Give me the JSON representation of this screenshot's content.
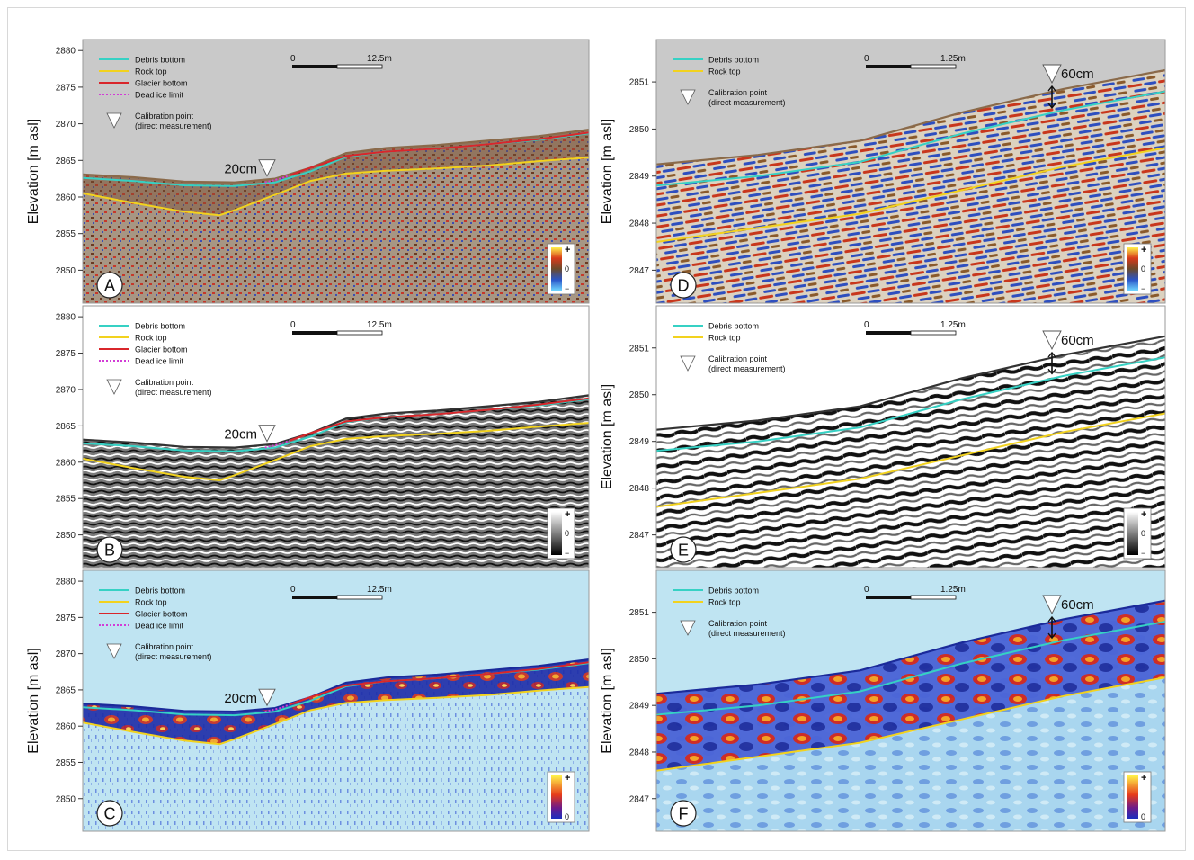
{
  "colors": {
    "debris": "#36d1c4",
    "rock": "#f2d21e",
    "glacier": "#d9262b",
    "deadice": "#d23cd6",
    "tickText": "#222222",
    "scaleBar": "#111111",
    "panelBgGray": "#c9c9c9",
    "panelBgWhite": "#ffffff",
    "panelBgBlue": "#bfe4f2"
  },
  "chart_data": [
    {
      "type": "line",
      "panel_label": "A",
      "ylabel": "Elevation [m asl]",
      "yticks": [
        "2880",
        "2875",
        "2870",
        "2865",
        "2860",
        "2855",
        "2850"
      ],
      "ylim": [
        2845.5,
        2881.5
      ],
      "xlim": [
        0,
        100
      ],
      "colormap": "brown-red-yellow",
      "colorbar_labels": [
        "+",
        "0",
        "−"
      ],
      "legend": [
        "Debris bottom",
        "Rock top",
        "Glacier bottom",
        "Dead ice limit"
      ],
      "calibration_label": "Calibration point\n(direct measurement)",
      "scale_bar": {
        "start": "0",
        "end": "12.5m"
      },
      "annotation": "20cm",
      "series": [
        {
          "name": "Debris bottom",
          "color_key": "debris",
          "x": [
            0,
            10,
            20,
            30,
            38,
            45,
            52,
            60,
            70,
            80,
            90,
            100
          ],
          "y": [
            2862.6,
            2862.2,
            2861.6,
            2861.5,
            2862.0,
            2863.5,
            2865.5,
            2866.2,
            2866.6,
            2867.2,
            2867.8,
            2868.7
          ]
        },
        {
          "name": "Rock top",
          "color_key": "rock",
          "x": [
            0,
            10,
            20,
            27,
            30,
            38,
            45,
            52,
            60,
            70,
            80,
            90,
            100
          ],
          "y": [
            2860.5,
            2859.2,
            2858.0,
            2857.5,
            2858.2,
            2860.3,
            2862.2,
            2863.2,
            2863.6,
            2863.9,
            2864.3,
            2864.9,
            2865.4
          ]
        },
        {
          "name": "Glacier bottom",
          "color_key": "glacier",
          "x": [
            41,
            45,
            52,
            60,
            70,
            80,
            90,
            100
          ],
          "y": [
            2863.0,
            2864.0,
            2865.6,
            2866.2,
            2866.6,
            2867.2,
            2867.9,
            2868.8
          ]
        },
        {
          "name": "Dead ice limit",
          "color_key": "deadice",
          "x": [
            36,
            39,
            41
          ],
          "y": [
            2862.0,
            2862.5,
            2863.0
          ]
        }
      ]
    },
    {
      "type": "line",
      "panel_label": "B",
      "ylabel": "",
      "yticks": [
        "2880",
        "2875",
        "2870",
        "2865",
        "2860",
        "2855",
        "2850"
      ],
      "ylim": [
        2845.5,
        2881.5
      ],
      "xlim": [
        0,
        100
      ],
      "colormap": "grayscale",
      "colorbar_labels": [
        "+",
        "0",
        "−"
      ],
      "legend": [
        "Debris bottom",
        "Rock top",
        "Glacier bottom",
        "Dead ice limit"
      ],
      "calibration_label": "Calibration point\n(direct measurement)",
      "scale_bar": {
        "start": "0",
        "end": "12.5m"
      },
      "annotation": "20cm",
      "series": [
        {
          "name": "Debris bottom",
          "color_key": "debris",
          "x": [
            0,
            10,
            20,
            30,
            38,
            45,
            52,
            60,
            70,
            80,
            90,
            100
          ],
          "y": [
            2862.6,
            2862.2,
            2861.6,
            2861.5,
            2862.0,
            2863.5,
            2865.5,
            2866.2,
            2866.6,
            2867.2,
            2867.8,
            2868.7
          ]
        },
        {
          "name": "Rock top",
          "color_key": "rock",
          "x": [
            0,
            10,
            20,
            27,
            30,
            38,
            45,
            52,
            60,
            70,
            80,
            90,
            100
          ],
          "y": [
            2860.5,
            2859.2,
            2858.0,
            2857.5,
            2858.2,
            2860.3,
            2862.2,
            2863.2,
            2863.6,
            2863.9,
            2864.3,
            2864.9,
            2865.4
          ]
        },
        {
          "name": "Glacier bottom",
          "color_key": "glacier",
          "x": [
            41,
            45,
            52,
            60,
            70,
            80,
            90,
            100
          ],
          "y": [
            2863.0,
            2864.0,
            2865.6,
            2866.2,
            2866.6,
            2867.2,
            2867.9,
            2868.8
          ]
        },
        {
          "name": "Dead ice limit",
          "color_key": "deadice",
          "x": [
            36,
            39,
            41
          ],
          "y": [
            2862.0,
            2862.5,
            2863.0
          ]
        }
      ]
    },
    {
      "type": "line",
      "panel_label": "C",
      "ylabel": "Elevation [m asl]",
      "yticks": [
        "2880",
        "2875",
        "2870",
        "2865",
        "2860",
        "2855",
        "2850"
      ],
      "ylim": [
        2845.5,
        2881.5
      ],
      "xlim": [
        0,
        100
      ],
      "colormap": "blue-red-yellow",
      "colorbar_labels": [
        "+",
        "0"
      ],
      "legend": [
        "Debris bottom",
        "Rock top",
        "Glacier bottom",
        "Dead ice limit"
      ],
      "calibration_label": "Calibration point\n(direct measurement)",
      "scale_bar": {
        "start": "0",
        "end": "12.5m"
      },
      "annotation": "20cm",
      "series": [
        {
          "name": "Debris bottom",
          "color_key": "debris",
          "x": [
            0,
            10,
            20,
            30,
            38,
            45,
            52,
            60,
            70,
            80,
            90,
            100
          ],
          "y": [
            2862.6,
            2862.2,
            2861.6,
            2861.5,
            2862.0,
            2863.5,
            2865.5,
            2866.2,
            2866.6,
            2867.2,
            2867.8,
            2868.7
          ]
        },
        {
          "name": "Rock top",
          "color_key": "rock",
          "x": [
            0,
            10,
            20,
            27,
            30,
            38,
            45,
            52,
            60,
            70,
            80,
            90,
            100
          ],
          "y": [
            2860.5,
            2859.2,
            2858.0,
            2857.5,
            2858.2,
            2860.3,
            2862.2,
            2863.2,
            2863.6,
            2863.9,
            2864.3,
            2864.9,
            2865.4
          ]
        },
        {
          "name": "Glacier bottom",
          "color_key": "glacier",
          "x": [
            41,
            45,
            52,
            60,
            70,
            80,
            90,
            100
          ],
          "y": [
            2863.0,
            2864.0,
            2865.6,
            2866.2,
            2866.6,
            2867.2,
            2867.9,
            2868.8
          ]
        },
        {
          "name": "Dead ice limit",
          "color_key": "deadice",
          "x": [
            36,
            39,
            41
          ],
          "y": [
            2862.0,
            2862.5,
            2863.0
          ]
        }
      ]
    },
    {
      "type": "line",
      "panel_label": "D",
      "ylabel": "Elevation [m asl]",
      "yticks": [
        "2851",
        "2850",
        "2849",
        "2848",
        "2847"
      ],
      "ylim": [
        2846.3,
        2851.9
      ],
      "xlim": [
        0,
        100
      ],
      "colormap": "brown-red-yellow",
      "colorbar_labels": [
        "+",
        "0",
        "−"
      ],
      "legend": [
        "Debris bottom",
        "Rock top"
      ],
      "calibration_label": "Calibration point\n(direct measurement)",
      "scale_bar": {
        "start": "0",
        "end": "1.25m"
      },
      "annotation": "60cm",
      "series": [
        {
          "name": "Debris bottom",
          "color_key": "debris",
          "x": [
            0,
            20,
            40,
            60,
            80,
            100
          ],
          "y": [
            2848.8,
            2849.0,
            2849.3,
            2849.9,
            2850.4,
            2850.8
          ]
        },
        {
          "name": "Rock top",
          "color_key": "rock",
          "x": [
            0,
            20,
            40,
            60,
            80,
            100
          ],
          "y": [
            2847.6,
            2847.9,
            2848.2,
            2848.7,
            2849.2,
            2849.6
          ]
        }
      ]
    },
    {
      "type": "line",
      "panel_label": "E",
      "ylabel": "Elevation [m asl]",
      "yticks": [
        "2851",
        "2850",
        "2849",
        "2848",
        "2847"
      ],
      "ylim": [
        2846.3,
        2851.9
      ],
      "xlim": [
        0,
        100
      ],
      "colormap": "grayscale",
      "colorbar_labels": [
        "+",
        "0",
        "−"
      ],
      "legend": [
        "Debris bottom",
        "Rock top"
      ],
      "calibration_label": "Calibration point\n(direct measurement)",
      "scale_bar": {
        "start": "0",
        "end": "1.25m"
      },
      "annotation": "60cm",
      "series": [
        {
          "name": "Debris bottom",
          "color_key": "debris",
          "x": [
            0,
            20,
            40,
            60,
            80,
            100
          ],
          "y": [
            2848.8,
            2849.0,
            2849.3,
            2849.9,
            2850.4,
            2850.8
          ]
        },
        {
          "name": "Rock top",
          "color_key": "rock",
          "x": [
            0,
            20,
            40,
            60,
            80,
            100
          ],
          "y": [
            2847.6,
            2847.9,
            2848.2,
            2848.7,
            2849.2,
            2849.6
          ]
        }
      ]
    },
    {
      "type": "line",
      "panel_label": "F",
      "ylabel": "Elevation [m asl]",
      "yticks": [
        "2851",
        "2850",
        "2849",
        "2848",
        "2847"
      ],
      "ylim": [
        2846.3,
        2851.9
      ],
      "xlim": [
        0,
        100
      ],
      "colormap": "blue-red-yellow",
      "colorbar_labels": [
        "+",
        "0"
      ],
      "legend": [
        "Debris bottom",
        "Rock top"
      ],
      "calibration_label": "Calibration point\n(direct measurement)",
      "scale_bar": {
        "start": "0",
        "end": "1.25m"
      },
      "annotation": "60cm",
      "series": [
        {
          "name": "Debris bottom",
          "color_key": "debris",
          "x": [
            0,
            20,
            40,
            60,
            80,
            100
          ],
          "y": [
            2848.8,
            2849.0,
            2849.3,
            2849.9,
            2850.4,
            2850.8
          ]
        },
        {
          "name": "Rock top",
          "color_key": "rock",
          "x": [
            0,
            20,
            40,
            60,
            80,
            100
          ],
          "y": [
            2847.6,
            2847.9,
            2848.2,
            2848.7,
            2849.2,
            2849.6
          ]
        }
      ]
    }
  ]
}
